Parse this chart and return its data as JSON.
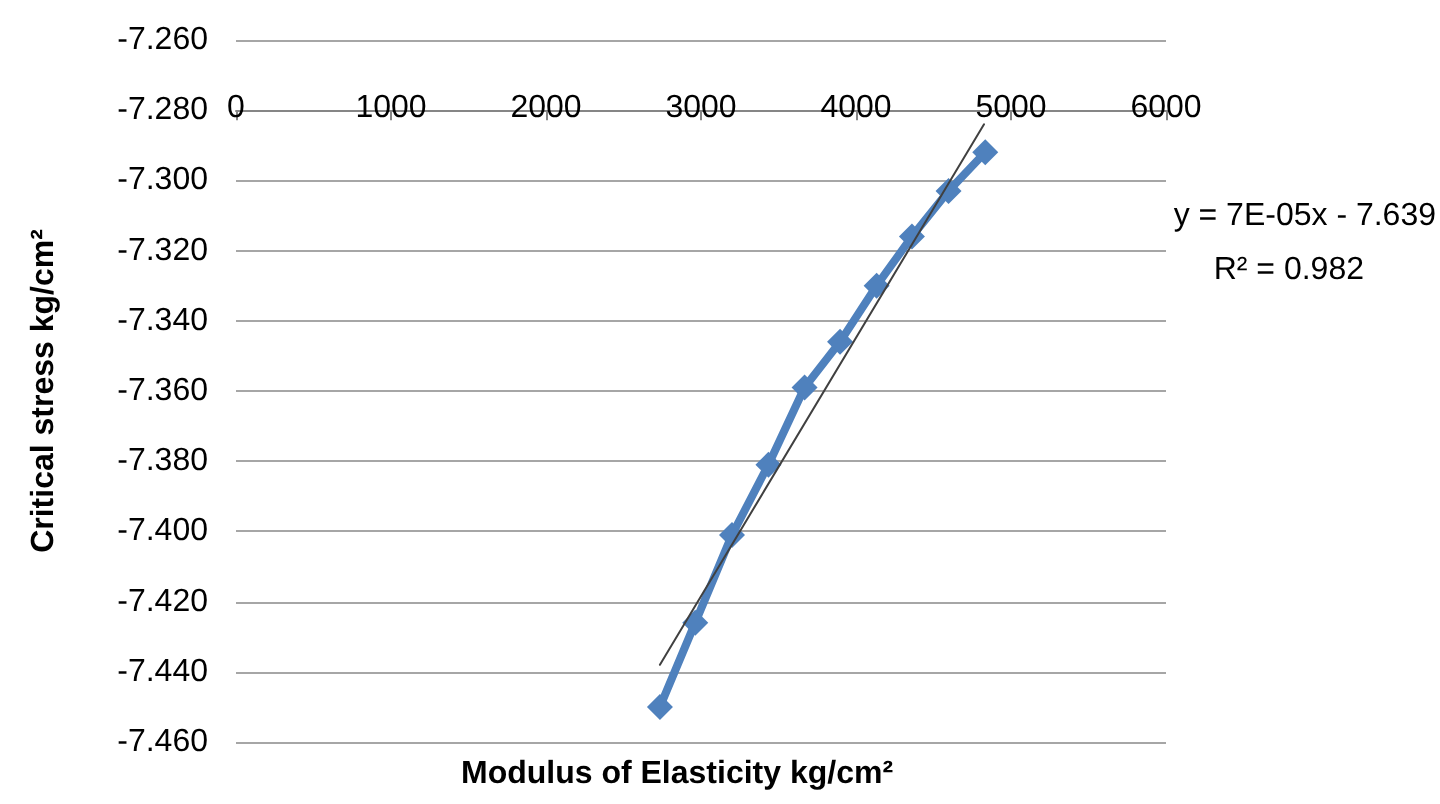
{
  "chart_data": {
    "type": "line",
    "xlabel": "Modulus of Elasticity kg/cm²",
    "ylabel": "Critical stress kg/cm²",
    "x": [
      2735,
      2963,
      3200,
      3435,
      3668,
      3897,
      4133,
      4361,
      4597,
      4834
    ],
    "series": [
      {
        "color": "#4f81bd",
        "values": [
          -7.45,
          -7.426,
          -7.401,
          -7.381,
          -7.359,
          -7.346,
          -7.33,
          -7.316,
          -7.303,
          -7.292
        ],
        "marker": "diamond",
        "line_style": "solid"
      },
      {
        "color": "#404040",
        "x": [
          2735,
          4826
        ],
        "values": [
          -7.438,
          -7.284
        ],
        "marker": "none",
        "line_style": "solid"
      }
    ],
    "xlim": [
      0,
      6000
    ],
    "xticks": [
      0,
      1000,
      2000,
      3000,
      4000,
      5000,
      6000
    ],
    "ylim": [
      -7.46,
      -7.26
    ],
    "yticks": [
      {
        "value": -7.46,
        "label": "-7.460"
      },
      {
        "value": -7.44,
        "label": "-7.440"
      },
      {
        "value": -7.42,
        "label": "-7.420"
      },
      {
        "value": -7.4,
        "label": "-7.400"
      },
      {
        "value": -7.38,
        "label": "-7.380"
      },
      {
        "value": -7.36,
        "label": "-7.360"
      },
      {
        "value": -7.34,
        "label": "-7.340"
      },
      {
        "value": -7.32,
        "label": "-7.320"
      },
      {
        "value": -7.3,
        "label": "-7.300"
      },
      {
        "value": -7.28,
        "label": "-7.280"
      },
      {
        "value": -7.26,
        "label": "-7.260"
      }
    ],
    "grid": "y",
    "annotations": [
      "y = 7E-05x - 7.639",
      "R² = 0.982"
    ]
  }
}
